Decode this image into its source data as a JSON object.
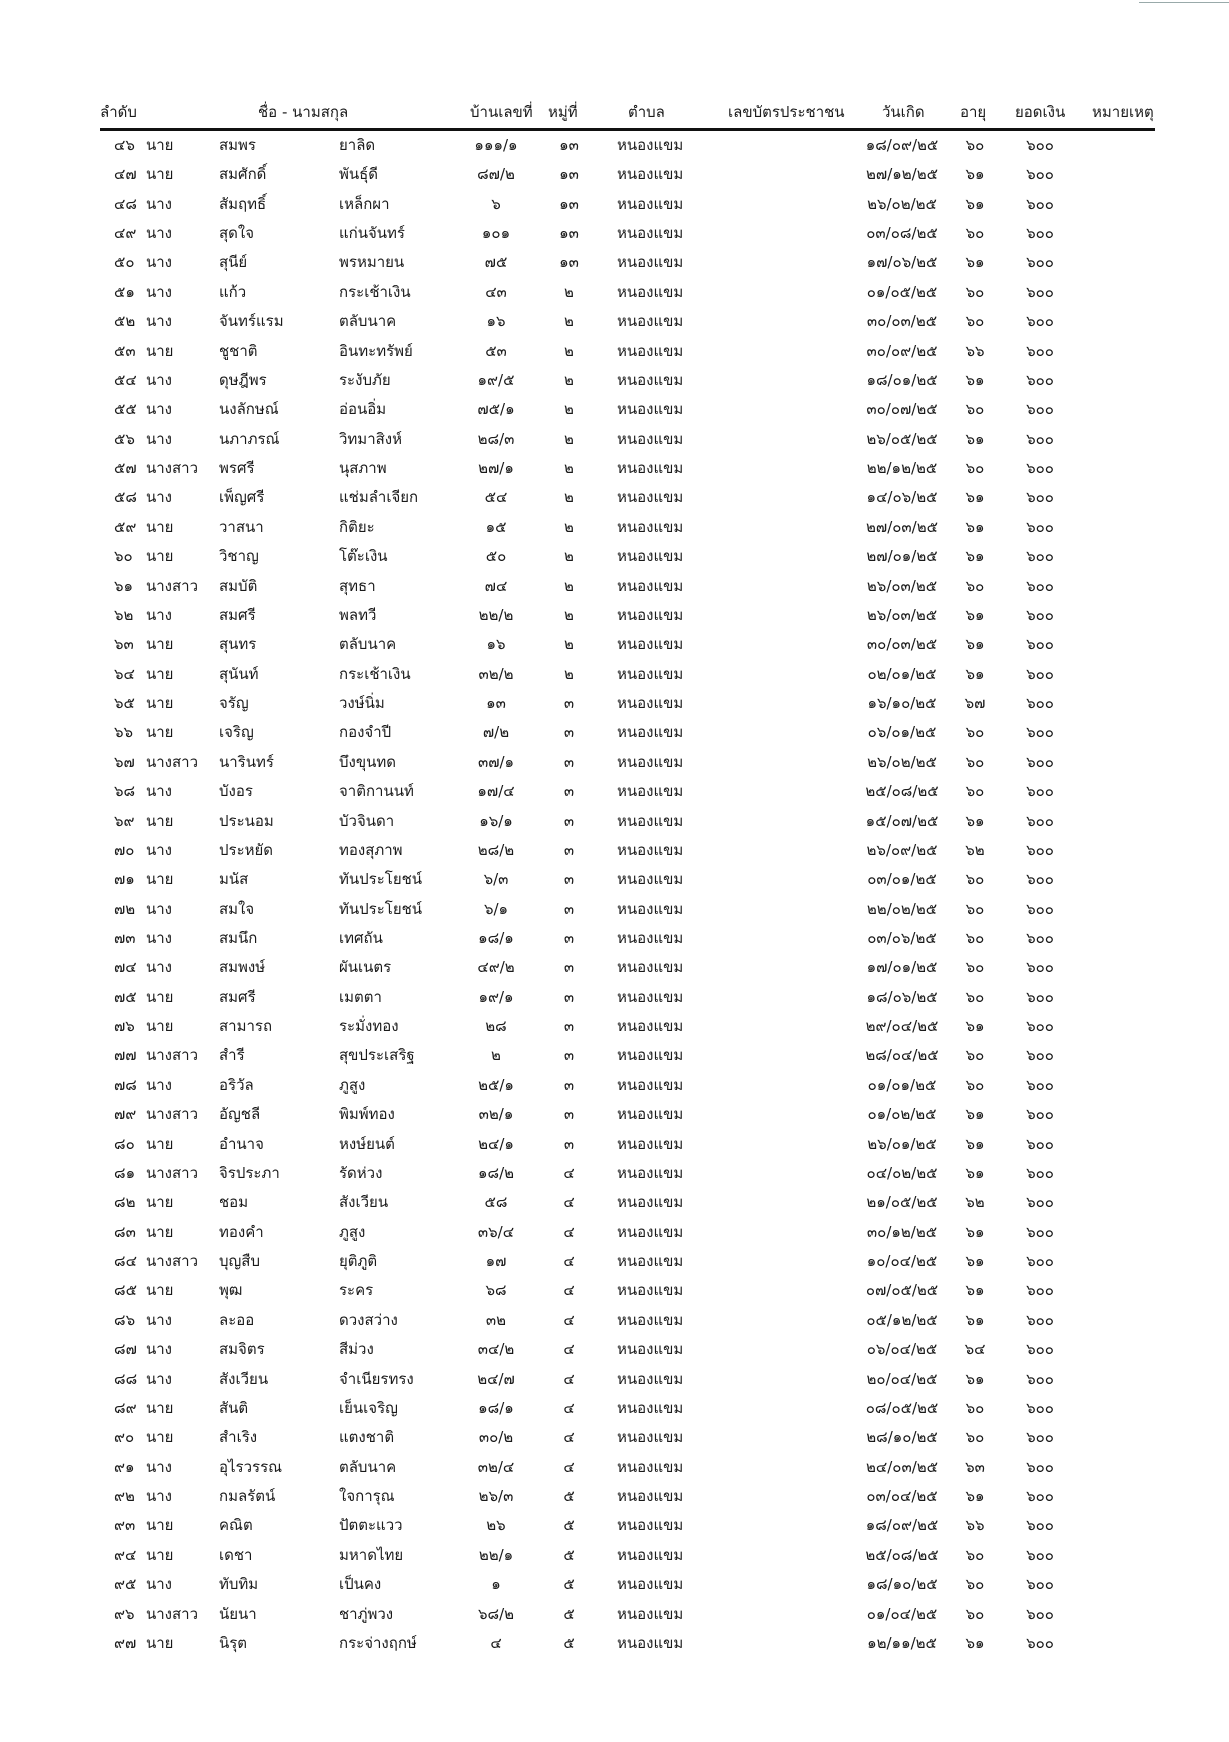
{
  "header": {
    "no": "ลำดับ",
    "name": "ชื่อ - นามสกุล",
    "house_no": "บ้านเลขที่",
    "moo": "หมู่ที่",
    "tambon": "ตำบล",
    "id_card": "เลขบัตรประชาชน",
    "birth_date": "วันเกิด",
    "age": "อายุ",
    "amount": "ยอดเงิน",
    "remark": "หมายเหตุ"
  },
  "rows": [
    [
      "๔๖",
      "นาย",
      "สมพร",
      "ยาลิด",
      "๑๑๑/๑",
      "๑๓",
      "หนองแขม",
      "๑๘/๐๙/๒๕",
      "๖๐",
      "๖๐๐"
    ],
    [
      "๔๗",
      "นาย",
      "สมศักดิ์",
      "พันธุ์ดี",
      "๘๗/๒",
      "๑๓",
      "หนองแขม",
      "๒๗/๑๒/๒๕",
      "๖๑",
      "๖๐๐"
    ],
    [
      "๔๘",
      "นาง",
      "สัมฤทธิ์",
      "เหล็กผา",
      "๖",
      "๑๓",
      "หนองแขม",
      "๒๖/๐๒/๒๕",
      "๖๑",
      "๖๐๐"
    ],
    [
      "๔๙",
      "นาง",
      "สุดใจ",
      "แก่นจันทร์",
      "๑๐๑",
      "๑๓",
      "หนองแขม",
      "๐๓/๐๘/๒๕",
      "๖๐",
      "๖๐๐"
    ],
    [
      "๕๐",
      "นาง",
      "สุนีย์",
      "พรหมายน",
      "๗๕",
      "๑๓",
      "หนองแขม",
      "๑๗/๐๖/๒๕",
      "๖๑",
      "๖๐๐"
    ],
    [
      "๕๑",
      "นาง",
      "แก้ว",
      "กระเช้าเงิน",
      "๔๓",
      "๒",
      "หนองแขม",
      "๐๑/๐๕/๒๕",
      "๖๐",
      "๖๐๐"
    ],
    [
      "๕๒",
      "นาง",
      "จันทร์แรม",
      "ตลับนาค",
      "๑๖",
      "๒",
      "หนองแขม",
      "๓๐/๐๓/๒๕",
      "๖๐",
      "๖๐๐"
    ],
    [
      "๕๓",
      "นาย",
      "ชูชาติ",
      "อินทะทรัพย์",
      "๕๓",
      "๒",
      "หนองแขม",
      "๓๐/๐๙/๒๕",
      "๖๖",
      "๖๐๐"
    ],
    [
      "๕๔",
      "นาง",
      "ดุษฎีพร",
      "ระงับภัย",
      "๑๙/๕",
      "๒",
      "หนองแขม",
      "๑๘/๐๑/๒๕",
      "๖๑",
      "๖๐๐"
    ],
    [
      "๕๕",
      "นาง",
      "นงลักษณ์",
      "อ่อนอิ่ม",
      "๗๕/๑",
      "๒",
      "หนองแขม",
      "๓๐/๐๗/๒๕",
      "๖๐",
      "๖๐๐"
    ],
    [
      "๕๖",
      "นาง",
      "นภาภรณ์",
      "วิทมาสิงห์",
      "๒๘/๓",
      "๒",
      "หนองแขม",
      "๒๖/๐๕/๒๕",
      "๖๑",
      "๖๐๐"
    ],
    [
      "๕๗",
      "นางสาว",
      "พรศรี",
      "นุสภาพ",
      "๒๗/๑",
      "๒",
      "หนองแขม",
      "๒๒/๑๒/๒๕",
      "๖๐",
      "๖๐๐"
    ],
    [
      "๕๘",
      "นาง",
      "เพ็ญศรี",
      "แช่มลำเจียก",
      "๕๔",
      "๒",
      "หนองแขม",
      "๑๔/๐๖/๒๕",
      "๖๑",
      "๖๐๐"
    ],
    [
      "๕๙",
      "นาย",
      "วาสนา",
      "กิติยะ",
      "๑๕",
      "๒",
      "หนองแขม",
      "๒๗/๐๓/๒๕",
      "๖๑",
      "๖๐๐"
    ],
    [
      "๖๐",
      "นาย",
      "วิชาญ",
      "โต๊ะเงิน",
      "๕๐",
      "๒",
      "หนองแขม",
      "๒๗/๐๑/๒๕",
      "๖๑",
      "๖๐๐"
    ],
    [
      "๖๑",
      "นางสาว",
      "สมบัติ",
      "สุทธา",
      "๗๔",
      "๒",
      "หนองแขม",
      "๒๖/๐๓/๒๕",
      "๖๐",
      "๖๐๐"
    ],
    [
      "๖๒",
      "นาง",
      "สมศรี",
      "พลทวี",
      "๒๒/๒",
      "๒",
      "หนองแขม",
      "๒๖/๐๓/๒๕",
      "๖๑",
      "๖๐๐"
    ],
    [
      "๖๓",
      "นาย",
      "สุนทร",
      "ตลับนาค",
      "๑๖",
      "๒",
      "หนองแขม",
      "๓๐/๐๓/๒๕",
      "๖๑",
      "๖๐๐"
    ],
    [
      "๖๔",
      "นาย",
      "สุนันท์",
      "กระเช้าเงิน",
      "๓๒/๒",
      "๒",
      "หนองแขม",
      "๐๒/๐๑/๒๕",
      "๖๑",
      "๖๐๐"
    ],
    [
      "๖๕",
      "นาย",
      "จรัญ",
      "วงษ์นิ่ม",
      "๑๓",
      "๓",
      "หนองแขม",
      "๑๖/๑๐/๒๕",
      "๖๗",
      "๖๐๐"
    ],
    [
      "๖๖",
      "นาย",
      "เจริญ",
      "กองจำปี",
      "๗/๒",
      "๓",
      "หนองแขม",
      "๐๖/๐๑/๒๕",
      "๖๐",
      "๖๐๐"
    ],
    [
      "๖๗",
      "นางสาว",
      "นารินทร์",
      "บึงขุนทด",
      "๓๗/๑",
      "๓",
      "หนองแขม",
      "๒๖/๐๒/๒๕",
      "๖๐",
      "๖๐๐"
    ],
    [
      "๖๘",
      "นาง",
      "บังอร",
      "จาติกานนท์",
      "๑๗/๔",
      "๓",
      "หนองแขม",
      "๒๕/๐๘/๒๕",
      "๖๐",
      "๖๐๐"
    ],
    [
      "๖๙",
      "นาย",
      "ประนอม",
      "บัวจินดา",
      "๑๖/๑",
      "๓",
      "หนองแขม",
      "๑๕/๐๗/๒๕",
      "๖๑",
      "๖๐๐"
    ],
    [
      "๗๐",
      "นาง",
      "ประหยัด",
      "ทองสุภาพ",
      "๒๘/๒",
      "๓",
      "หนองแขม",
      "๒๖/๐๙/๒๕",
      "๖๒",
      "๖๐๐"
    ],
    [
      "๗๑",
      "นาย",
      "มนัส",
      "ทันประโยชน์",
      "๖/๓",
      "๓",
      "หนองแขม",
      "๐๓/๐๑/๒๕",
      "๖๐",
      "๖๐๐"
    ],
    [
      "๗๒",
      "นาง",
      "สมใจ",
      "ทันประโยชน์",
      "๖/๑",
      "๓",
      "หนองแขม",
      "๒๒/๐๒/๒๕",
      "๖๐",
      "๖๐๐"
    ],
    [
      "๗๓",
      "นาง",
      "สมนึก",
      "เทศถัน",
      "๑๘/๑",
      "๓",
      "หนองแขม",
      "๐๓/๐๖/๒๕",
      "๖๐",
      "๖๐๐"
    ],
    [
      "๗๔",
      "นาง",
      "สมพงษ์",
      "ผันเนตร",
      "๔๙/๒",
      "๓",
      "หนองแขม",
      "๑๗/๐๑/๒๕",
      "๖๐",
      "๖๐๐"
    ],
    [
      "๗๕",
      "นาย",
      "สมศรี",
      "เมตตา",
      "๑๙/๑",
      "๓",
      "หนองแขม",
      "๑๘/๐๖/๒๕",
      "๖๐",
      "๖๐๐"
    ],
    [
      "๗๖",
      "นาย",
      "สามารถ",
      "ระมั่งทอง",
      "๒๘",
      "๓",
      "หนองแขม",
      "๒๙/๐๔/๒๕",
      "๖๑",
      "๖๐๐"
    ],
    [
      "๗๗",
      "นางสาว",
      "สำรี",
      "สุขประเสริฐ",
      "๒",
      "๓",
      "หนองแขม",
      "๒๘/๐๔/๒๕",
      "๖๐",
      "๖๐๐"
    ],
    [
      "๗๘",
      "นาง",
      "อริวัล",
      "ภูสูง",
      "๒๕/๑",
      "๓",
      "หนองแขม",
      "๐๑/๐๑/๒๕",
      "๖๐",
      "๖๐๐"
    ],
    [
      "๗๙",
      "นางสาว",
      "อัญชลี",
      "พิมพ์ทอง",
      "๓๒/๑",
      "๓",
      "หนองแขม",
      "๐๑/๐๒/๒๕",
      "๖๑",
      "๖๐๐"
    ],
    [
      "๘๐",
      "นาย",
      "อำนาจ",
      "หงษ์ยนต์",
      "๒๔/๑",
      "๓",
      "หนองแขม",
      "๒๖/๐๑/๒๕",
      "๖๑",
      "๖๐๐"
    ],
    [
      "๘๑",
      "นางสาว",
      "จิรประภา",
      "รัดห่วง",
      "๑๘/๒",
      "๔",
      "หนองแขม",
      "๐๔/๐๒/๒๕",
      "๖๑",
      "๖๐๐"
    ],
    [
      "๘๒",
      "นาย",
      "ชอม",
      "สังเวียน",
      "๕๘",
      "๔",
      "หนองแขม",
      "๒๑/๐๕/๒๕",
      "๖๒",
      "๖๐๐"
    ],
    [
      "๘๓",
      "นาย",
      "ทองคำ",
      "ภูสูง",
      "๓๖/๔",
      "๔",
      "หนองแขม",
      "๓๐/๑๒/๒๕",
      "๖๑",
      "๖๐๐"
    ],
    [
      "๘๔",
      "นางสาว",
      "บุญสืบ",
      "ยุติภูติ",
      "๑๗",
      "๔",
      "หนองแขม",
      "๑๐/๐๔/๒๕",
      "๖๑",
      "๖๐๐"
    ],
    [
      "๘๕",
      "นาย",
      "พุฒ",
      "ระคร",
      "๖๘",
      "๔",
      "หนองแขม",
      "๐๗/๐๕/๒๕",
      "๖๑",
      "๖๐๐"
    ],
    [
      "๘๖",
      "นาง",
      "ละออ",
      "ดวงสว่าง",
      "๓๒",
      "๔",
      "หนองแขม",
      "๐๕/๑๒/๒๕",
      "๖๑",
      "๖๐๐"
    ],
    [
      "๘๗",
      "นาง",
      "สมจิตร",
      "สีม่วง",
      "๓๔/๒",
      "๔",
      "หนองแขม",
      "๐๖/๐๔/๒๕",
      "๖๔",
      "๖๐๐"
    ],
    [
      "๘๘",
      "นาง",
      "สังเวียน",
      "จำเนียรทรง",
      "๒๔/๗",
      "๔",
      "หนองแขม",
      "๒๐/๐๔/๒๕",
      "๖๑",
      "๖๐๐"
    ],
    [
      "๘๙",
      "นาย",
      "สันติ",
      "เย็นเจริญ",
      "๑๘/๑",
      "๔",
      "หนองแขม",
      "๐๘/๐๕/๒๕",
      "๖๐",
      "๖๐๐"
    ],
    [
      "๙๐",
      "นาย",
      "สำเริง",
      "แตงชาติ",
      "๓๐/๒",
      "๔",
      "หนองแขม",
      "๒๘/๑๐/๒๕",
      "๖๐",
      "๖๐๐"
    ],
    [
      "๙๑",
      "นาง",
      "อุไรวรรณ",
      "ตลับนาค",
      "๓๒/๔",
      "๔",
      "หนองแขม",
      "๒๔/๐๓/๒๕",
      "๖๓",
      "๖๐๐"
    ],
    [
      "๙๒",
      "นาง",
      "กมลรัตน์",
      "ใจการุณ",
      "๒๖/๓",
      "๕",
      "หนองแขม",
      "๐๓/๐๔/๒๕",
      "๖๑",
      "๖๐๐"
    ],
    [
      "๙๓",
      "นาย",
      "คณิต",
      "ปัตตะแวว",
      "๒๖",
      "๕",
      "หนองแขม",
      "๑๘/๐๙/๒๕",
      "๖๖",
      "๖๐๐"
    ],
    [
      "๙๔",
      "นาย",
      "เดชา",
      "มหาดไทย",
      "๒๒/๑",
      "๕",
      "หนองแขม",
      "๒๕/๐๘/๒๕",
      "๖๐",
      "๖๐๐"
    ],
    [
      "๙๕",
      "นาง",
      "ทับทิม",
      "เป็นคง",
      "๑",
      "๕",
      "หนองแขม",
      "๑๘/๑๐/๒๕",
      "๖๐",
      "๖๐๐"
    ],
    [
      "๙๖",
      "นางสาว",
      "นัยนา",
      "ชาภู่พวง",
      "๖๘/๒",
      "๕",
      "หนองแขม",
      "๐๑/๐๔/๒๕",
      "๖๐",
      "๖๐๐"
    ],
    [
      "๙๗",
      "นาย",
      "นิรุต",
      "กระจ่างฤกษ์",
      "๔",
      "๕",
      "หนองแขม",
      "๑๒/๑๑/๒๕",
      "๖๑",
      "๖๐๐"
    ]
  ]
}
